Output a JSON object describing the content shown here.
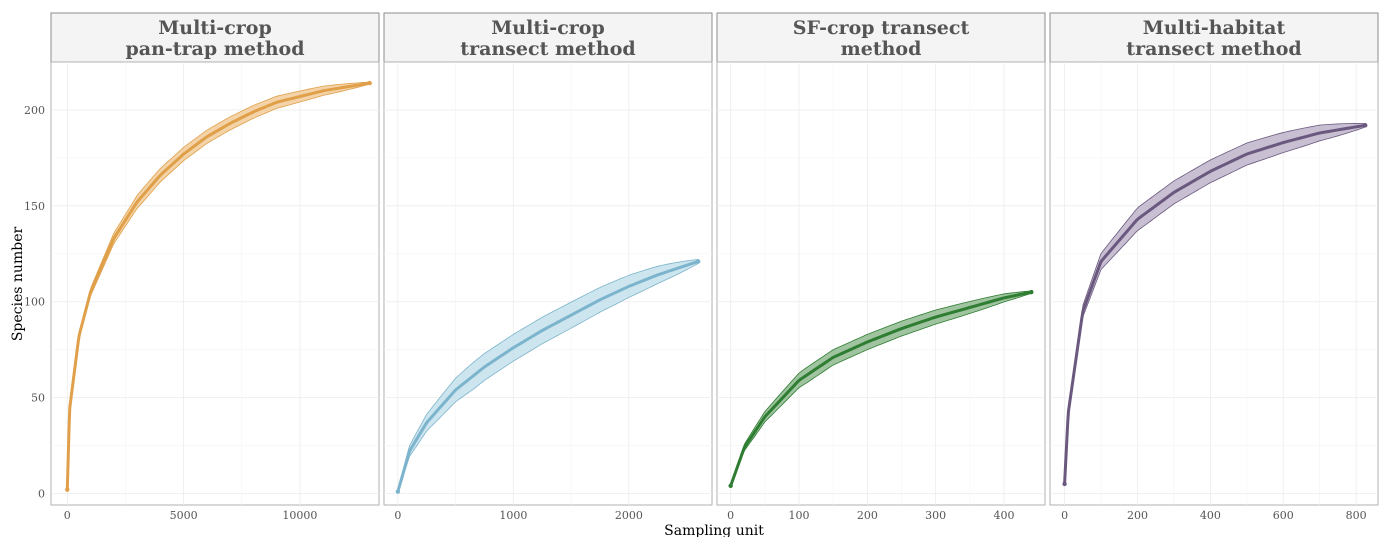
{
  "chart_data": {
    "type": "line",
    "xlabel": "Sampling unit",
    "ylabel": "Species number",
    "ylim": [
      -6,
      225
    ],
    "yticks": [
      0,
      50,
      100,
      150,
      200
    ],
    "grid": true,
    "legend": "none",
    "panels": [
      {
        "title_lines": [
          "Multi-crop",
          "pan-trap method"
        ],
        "color": "#E0A04A",
        "band_color": "#EFC489",
        "xlim": [
          -700,
          13400
        ],
        "xticks": [
          0,
          5000,
          10000
        ],
        "x_max": 13000,
        "y_start": 2,
        "y_end": 214,
        "band_halfwidth": 3.5,
        "points": [
          [
            0,
            2
          ],
          [
            100,
            44
          ],
          [
            500,
            82
          ],
          [
            1000,
            105
          ],
          [
            2000,
            133
          ],
          [
            3000,
            152
          ],
          [
            4000,
            166
          ],
          [
            5000,
            177
          ],
          [
            6000,
            186
          ],
          [
            7000,
            193
          ],
          [
            8000,
            199
          ],
          [
            9000,
            204
          ],
          [
            10000,
            207
          ],
          [
            11000,
            210
          ],
          [
            12000,
            212
          ],
          [
            13000,
            214
          ]
        ]
      },
      {
        "title_lines": [
          "Multi-crop",
          "transect method"
        ],
        "color": "#7BB4CC",
        "band_color": "#BCDCE8",
        "xlim": [
          -120,
          2720
        ],
        "xticks": [
          0,
          1000,
          2000
        ],
        "x_max": 2600,
        "y_start": 1,
        "y_end": 121,
        "band_halfwidth": 7,
        "points": [
          [
            0,
            1
          ],
          [
            100,
            22
          ],
          [
            250,
            37
          ],
          [
            500,
            54
          ],
          [
            750,
            66
          ],
          [
            1000,
            76
          ],
          [
            1250,
            85
          ],
          [
            1500,
            93
          ],
          [
            1750,
            101
          ],
          [
            2000,
            108
          ],
          [
            2250,
            114
          ],
          [
            2600,
            121
          ]
        ]
      },
      {
        "title_lines": [
          "SF-crop transect",
          "method"
        ],
        "color": "#2E7D32",
        "band_color": "#7FB07F",
        "xlim": [
          -20,
          460
        ],
        "xticks": [
          0,
          100,
          200,
          300,
          400
        ],
        "x_max": 440,
        "y_start": 4,
        "y_end": 105,
        "band_halfwidth": 4,
        "points": [
          [
            0,
            4
          ],
          [
            20,
            24
          ],
          [
            50,
            40
          ],
          [
            100,
            59
          ],
          [
            150,
            71
          ],
          [
            200,
            79
          ],
          [
            250,
            86
          ],
          [
            300,
            92
          ],
          [
            350,
            97
          ],
          [
            400,
            102
          ],
          [
            440,
            105
          ]
        ]
      },
      {
        "title_lines": [
          "Multi-habitat",
          "transect method"
        ],
        "color": "#6A587E",
        "band_color": "#B5A9C3",
        "xlim": [
          -40,
          860
        ],
        "xticks": [
          0,
          200,
          400,
          600,
          800
        ],
        "x_max": 825,
        "y_start": 5,
        "y_end": 192,
        "band_halfwidth": 6,
        "points": [
          [
            0,
            5
          ],
          [
            10,
            42
          ],
          [
            50,
            95
          ],
          [
            100,
            121
          ],
          [
            200,
            143
          ],
          [
            300,
            157
          ],
          [
            400,
            168
          ],
          [
            500,
            177
          ],
          [
            600,
            183
          ],
          [
            700,
            188
          ],
          [
            825,
            192
          ]
        ]
      }
    ]
  }
}
